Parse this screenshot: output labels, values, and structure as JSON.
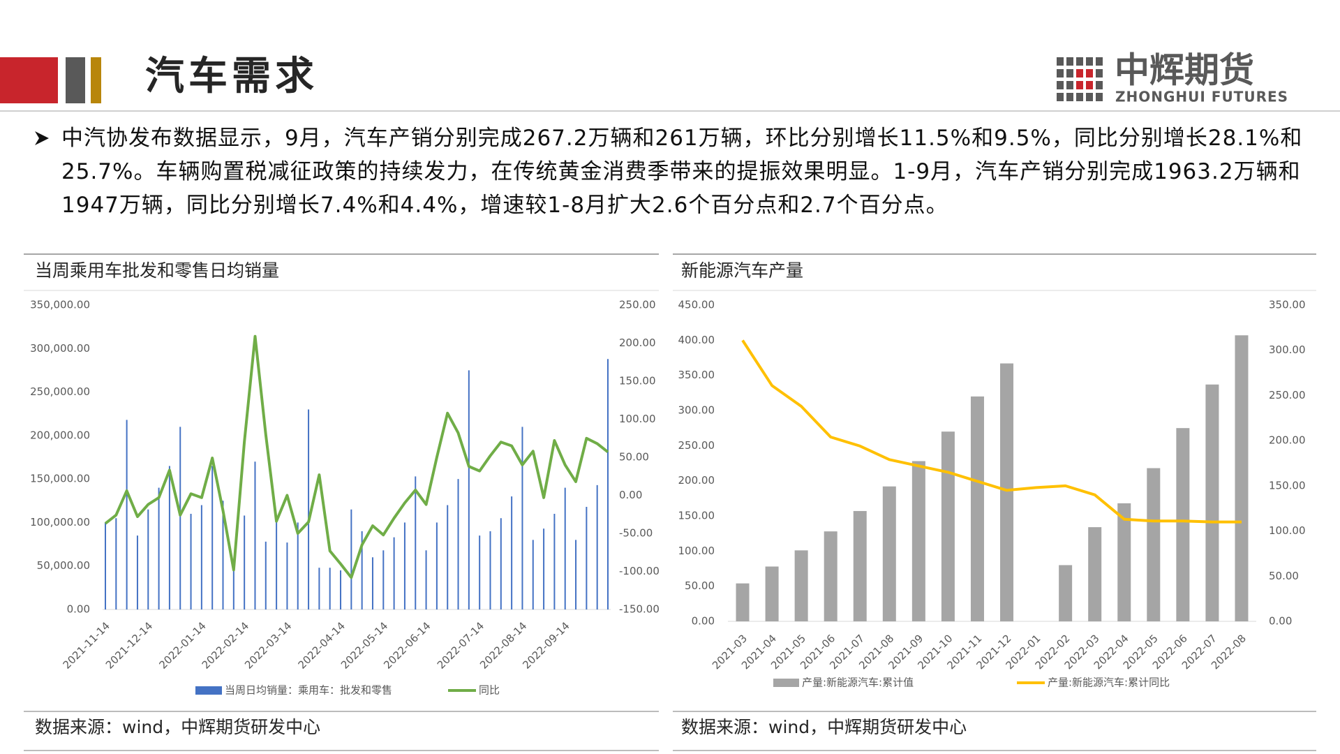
{
  "header": {
    "title": "汽车需求",
    "logo_cn": "中辉期货",
    "logo_en": "ZHONGHUI FUTURES"
  },
  "body": {
    "text": "中汽协发布数据显示，9月，汽车产销分别完成267.2万辆和261万辆，环比分别增长11.5%和9.5%，同比分别增长28.1%和25.7%。车辆购置税减征政策的持续发力，在传统黄金消费季带来的提振效果明显。1-9月，汽车产销分别完成1963.2万辆和1947万辆，同比分别增长7.4%和4.4%，增速较1-8月扩大2.6个百分点和2.7个百分点。"
  },
  "chart_data": [
    {
      "type": "combo",
      "title": "当周乘用车批发和零售日均销量",
      "source": "数据来源：wind，中辉期货研发中心",
      "categories": [
        "2021-11-14",
        null,
        null,
        null,
        "2021-12-14",
        null,
        null,
        null,
        null,
        "2022-01-14",
        null,
        null,
        null,
        "2022-02-14",
        null,
        null,
        null,
        "2022-03-14",
        null,
        null,
        null,
        null,
        "2022-04-14",
        null,
        null,
        null,
        "2022-05-14",
        null,
        null,
        null,
        "2022-06-14",
        null,
        null,
        null,
        null,
        "2022-07-14",
        null,
        null,
        null,
        "2022-08-14",
        null,
        null,
        null,
        "2022-09-14",
        null,
        null,
        null,
        null
      ],
      "series": [
        {
          "name": "当周日均销量：乘用车：批发和零售",
          "type": "bar",
          "axis": "y",
          "color": "#4472c4",
          "values": [
            100000,
            105000,
            218000,
            85000,
            115000,
            140000,
            165000,
            210000,
            110000,
            120000,
            165000,
            125000,
            55000,
            108000,
            170000,
            78000,
            105000,
            77000,
            100000,
            230000,
            48000,
            48000,
            45000,
            115000,
            90000,
            60000,
            68000,
            83000,
            100000,
            153000,
            68000,
            100000,
            120000,
            150000,
            275000,
            85000,
            90000,
            105000,
            130000,
            210000,
            80000,
            93000,
            110000,
            140000,
            80000,
            118000,
            143000,
            288000
          ]
        },
        {
          "name": "同比",
          "type": "line",
          "axis": "y2",
          "color": "#70ad47",
          "values": [
            -37,
            -26,
            6,
            -28,
            -12,
            -3,
            33,
            -26,
            2,
            -3,
            49,
            -20,
            -98,
            70,
            209,
            80,
            -34,
            0,
            -50,
            -35,
            27,
            -73,
            -90,
            -108,
            -65,
            -40,
            -52,
            -30,
            -10,
            7,
            -12,
            50,
            108,
            82,
            38,
            32,
            52,
            70,
            65,
            40,
            58,
            -3,
            72,
            40,
            18,
            75,
            68,
            57
          ]
        }
      ],
      "ylim": [
        0,
        350000
      ],
      "yticks": [
        {
          "value": 0,
          "label": "0.00"
        },
        {
          "value": 50000,
          "label": "50,000.00"
        },
        {
          "value": 100000,
          "label": "100,000.00"
        },
        {
          "value": 150000,
          "label": "150,000.00"
        },
        {
          "value": 200000,
          "label": "200,000.00"
        },
        {
          "value": 250000,
          "label": "250,000.00"
        },
        {
          "value": 300000,
          "label": "300,000.00"
        },
        {
          "value": 350000,
          "label": "350,000.00"
        }
      ],
      "y2lim": [
        -150,
        250
      ],
      "y2ticks": [
        {
          "value": -150,
          "label": "-150.00"
        },
        {
          "value": -100,
          "label": "-100.00"
        },
        {
          "value": -50,
          "label": "-50.00"
        },
        {
          "value": 0,
          "label": "0.00"
        },
        {
          "value": 50,
          "label": "50.00"
        },
        {
          "value": 100,
          "label": "100.00"
        },
        {
          "value": 150,
          "label": "150.00"
        },
        {
          "value": 200,
          "label": "200.00"
        },
        {
          "value": 250,
          "label": "250.00"
        }
      ],
      "legend": "bottom"
    },
    {
      "type": "combo",
      "title": "新能源汽车产量",
      "source": "数据来源：wind，中辉期货研发中心",
      "categories": [
        "2021-03",
        "2021-04",
        "2021-05",
        "2021-06",
        "2021-07",
        "2021-08",
        "2021-09",
        "2021-10",
        "2021-11",
        "2021-12",
        "2022-01",
        "2022-02",
        "2022-03",
        "2022-04",
        "2022-05",
        "2022-06",
        "2022-07",
        "2022-08"
      ],
      "series": [
        {
          "name": "产量:新能源汽车:累计值",
          "type": "bar",
          "axis": "y",
          "color": "#a5a5a5",
          "values": [
            54,
            78,
            101,
            128,
            157,
            192,
            228,
            270,
            320,
            367,
            null,
            80,
            134,
            168,
            218,
            275,
            337,
            407
          ]
        },
        {
          "name": "产量:新能源汽车:累计同比",
          "type": "line",
          "axis": "y2",
          "color": "#ffc000",
          "values": [
            311,
            261,
            238,
            204,
            194,
            179,
            172,
            165,
            155,
            145,
            148,
            150,
            140,
            113,
            111,
            111,
            110,
            110
          ]
        }
      ],
      "ylim": [
        0,
        450
      ],
      "yticks": [
        {
          "value": 0,
          "label": "0.00"
        },
        {
          "value": 50,
          "label": "50.00"
        },
        {
          "value": 100,
          "label": "100.00"
        },
        {
          "value": 150,
          "label": "150.00"
        },
        {
          "value": 200,
          "label": "200.00"
        },
        {
          "value": 250,
          "label": "250.00"
        },
        {
          "value": 300,
          "label": "300.00"
        },
        {
          "value": 350,
          "label": "350.00"
        },
        {
          "value": 400,
          "label": "400.00"
        },
        {
          "value": 450,
          "label": "450.00"
        }
      ],
      "y2lim": [
        0,
        350
      ],
      "y2ticks": [
        {
          "value": 0,
          "label": "0.00"
        },
        {
          "value": 50,
          "label": "50.00"
        },
        {
          "value": 100,
          "label": "100.00"
        },
        {
          "value": 150,
          "label": "150.00"
        },
        {
          "value": 200,
          "label": "200.00"
        },
        {
          "value": 250,
          "label": "250.00"
        },
        {
          "value": 300,
          "label": "300.00"
        },
        {
          "value": 350,
          "label": "350.00"
        }
      ],
      "legend": "bottom"
    }
  ]
}
